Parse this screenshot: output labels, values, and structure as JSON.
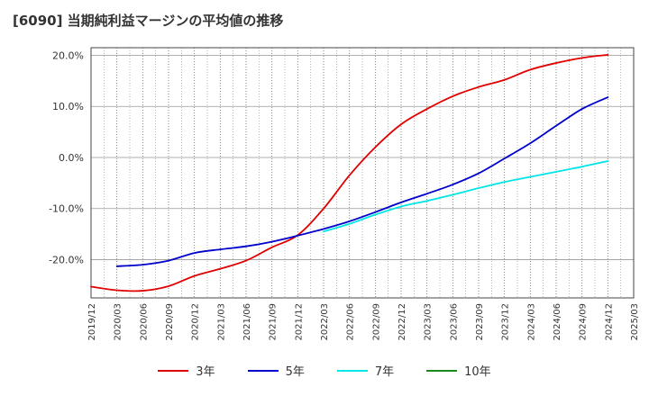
{
  "title": "[6090]  当期純利益マージンの平均値の推移",
  "chart_data": {
    "type": "line",
    "ylim": [
      -27.5,
      21.5
    ],
    "yticks": [
      20,
      10,
      0,
      -10,
      -20
    ],
    "ytick_labels": [
      "20.0%",
      "10.0%",
      "0.0%",
      "-10.0%",
      "-20.0%"
    ],
    "x_categories": [
      "2019/12",
      "2020/03",
      "2020/06",
      "2020/09",
      "2020/12",
      "2021/03",
      "2021/06",
      "2021/09",
      "2021/12",
      "2022/03",
      "2022/06",
      "2022/09",
      "2022/12",
      "2023/03",
      "2023/06",
      "2023/09",
      "2023/12",
      "2024/03",
      "2024/06",
      "2024/09",
      "2024/12",
      "2025/03"
    ],
    "grid": true,
    "legend_position": "bottom",
    "series": [
      {
        "name": "3年",
        "color": "#e00000",
        "points": [
          [
            "2019/12",
            -25.3
          ],
          [
            "2020/03",
            -26.0
          ],
          [
            "2020/06",
            -26.1
          ],
          [
            "2020/09",
            -25.2
          ],
          [
            "2020/12",
            -23.2
          ],
          [
            "2021/03",
            -21.8
          ],
          [
            "2021/06",
            -20.2
          ],
          [
            "2021/09",
            -17.6
          ],
          [
            "2021/12",
            -15.2
          ],
          [
            "2022/03",
            -10.0
          ],
          [
            "2022/06",
            -3.5
          ],
          [
            "2022/09",
            2.0
          ],
          [
            "2022/12",
            6.5
          ],
          [
            "2023/03",
            9.5
          ],
          [
            "2023/06",
            12.0
          ],
          [
            "2023/09",
            13.8
          ],
          [
            "2023/12",
            15.2
          ],
          [
            "2024/03",
            17.2
          ],
          [
            "2024/06",
            18.5
          ],
          [
            "2024/09",
            19.5
          ],
          [
            "2024/12",
            20.1
          ]
        ]
      },
      {
        "name": "5年",
        "color": "#0000cc",
        "points": [
          [
            "2020/03",
            -21.3
          ],
          [
            "2020/06",
            -21.0
          ],
          [
            "2020/09",
            -20.2
          ],
          [
            "2020/12",
            -18.7
          ],
          [
            "2021/03",
            -18.0
          ],
          [
            "2021/06",
            -17.4
          ],
          [
            "2021/09",
            -16.5
          ],
          [
            "2021/12",
            -15.3
          ],
          [
            "2022/03",
            -14.0
          ],
          [
            "2022/06",
            -12.5
          ],
          [
            "2022/09",
            -10.7
          ],
          [
            "2022/12",
            -8.8
          ],
          [
            "2023/03",
            -7.1
          ],
          [
            "2023/06",
            -5.3
          ],
          [
            "2023/09",
            -3.1
          ],
          [
            "2023/12",
            -0.2
          ],
          [
            "2024/03",
            2.8
          ],
          [
            "2024/06",
            6.2
          ],
          [
            "2024/09",
            9.5
          ],
          [
            "2024/12",
            11.8
          ]
        ]
      },
      {
        "name": "7年",
        "color": "#00e5e5",
        "points": [
          [
            "2022/03",
            -14.5
          ],
          [
            "2022/06",
            -13.0
          ],
          [
            "2022/09",
            -11.2
          ],
          [
            "2022/12",
            -9.6
          ],
          [
            "2023/03",
            -8.5
          ],
          [
            "2023/06",
            -7.3
          ],
          [
            "2023/09",
            -6.0
          ],
          [
            "2023/12",
            -4.8
          ],
          [
            "2024/03",
            -3.8
          ],
          [
            "2024/06",
            -2.8
          ],
          [
            "2024/09",
            -1.8
          ],
          [
            "2024/12",
            -0.7
          ]
        ]
      },
      {
        "name": "10年",
        "color": "#1a8a1a",
        "points": []
      }
    ]
  }
}
